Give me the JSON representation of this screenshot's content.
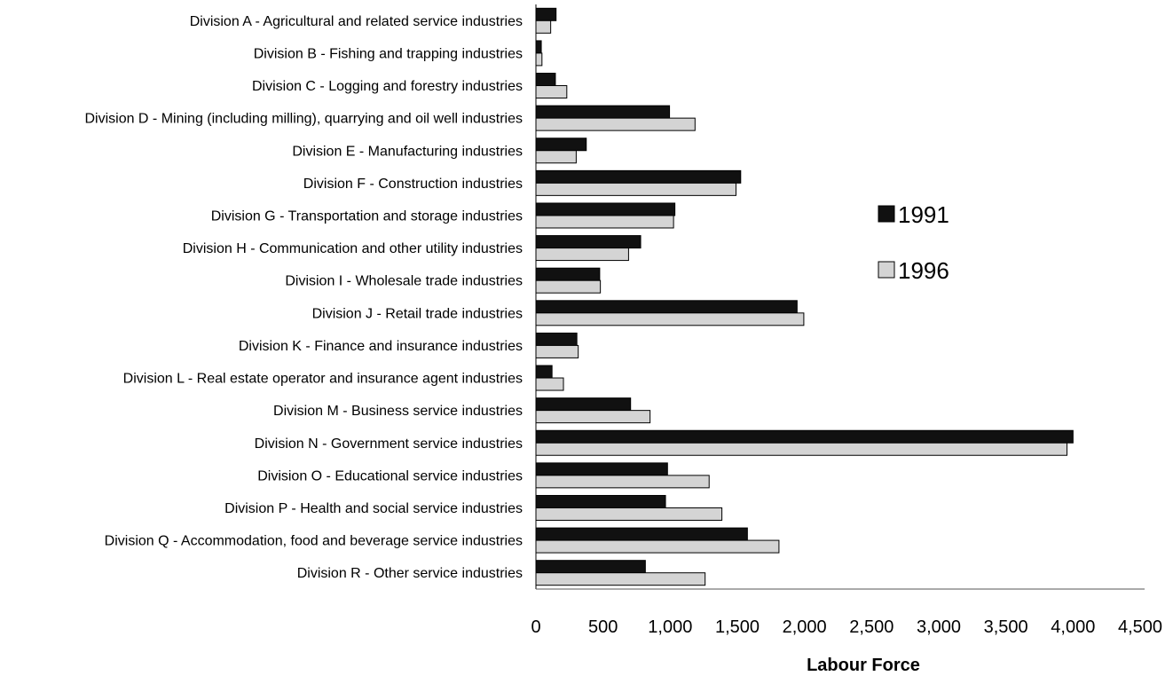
{
  "chart_data": {
    "type": "bar",
    "orientation": "horizontal",
    "title": "",
    "xlabel": "Labour Force",
    "ylabel": "",
    "xlim": [
      0,
      4500
    ],
    "xticks": [
      "0",
      "500",
      "1,000",
      "1,500",
      "2,000",
      "2,500",
      "3,000",
      "3,500",
      "4,000",
      "4,500"
    ],
    "grid": false,
    "legend_position": "right",
    "categories": [
      "Division A - Agricultural and related service industries",
      "Division B - Fishing and trapping industries",
      "Division C - Logging and forestry industries",
      "Division D - Mining (including milling), quarrying and oil well industries",
      "Division E - Manufacturing industries",
      "Division F - Construction industries",
      "Division G - Transportation and storage industries",
      "Division H - Communication and other utility industries",
      "Division I - Wholesale trade industries",
      "Division J - Retail trade industries",
      "Division K - Finance and insurance industries",
      "Division L - Real estate operator and insurance agent industries",
      "Division M - Business service industries",
      "Division N - Government service industries",
      "Division O - Educational service industries",
      "Division P - Health and social service industries",
      "Division Q - Accommodation, food and beverage service industries",
      "Division R - Other service industries"
    ],
    "series": [
      {
        "name": "1991",
        "color": "#111111",
        "values": [
          150,
          40,
          145,
          995,
          375,
          1525,
          1035,
          780,
          475,
          1945,
          305,
          120,
          705,
          4000,
          980,
          965,
          1575,
          815
        ]
      },
      {
        "name": "1996",
        "color": "#d4d4d4",
        "values": [
          110,
          45,
          230,
          1185,
          300,
          1490,
          1025,
          690,
          480,
          1995,
          315,
          205,
          850,
          3955,
          1290,
          1385,
          1810,
          1260
        ]
      }
    ]
  }
}
